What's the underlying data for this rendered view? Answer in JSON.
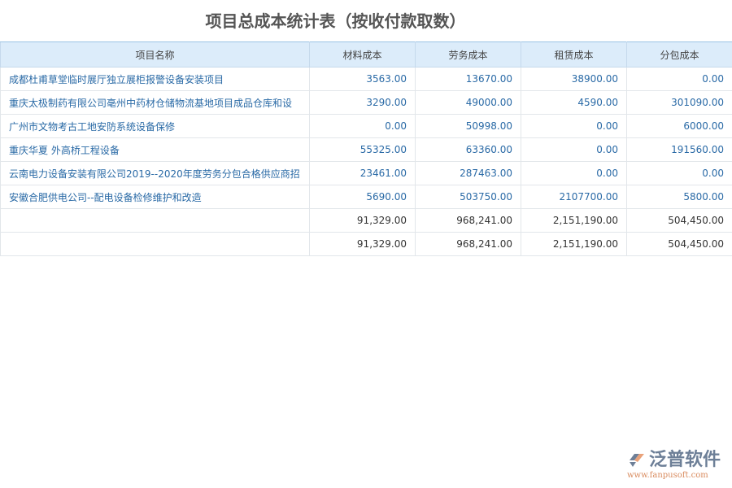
{
  "title": "项目总成本统计表（按收付款取数）",
  "columns": [
    "项目名称",
    "材料成本",
    "劳务成本",
    "租赁成本",
    "分包成本"
  ],
  "rows": [
    [
      "成都杜甫草堂临时展厅独立展柜报警设备安装项目",
      "3563.00",
      "13670.00",
      "38900.00",
      "0.00"
    ],
    [
      "重庆太极制药有限公司亳州中药材仓储物流基地项目成品仓库和设",
      "3290.00",
      "49000.00",
      "4590.00",
      "301090.00"
    ],
    [
      "广州市文物考古工地安防系统设备保修",
      "0.00",
      "50998.00",
      "0.00",
      "6000.00"
    ],
    [
      "重庆华夏 外高桥工程设备",
      "55325.00",
      "63360.00",
      "0.00",
      "191560.00"
    ],
    [
      "云南电力设备安装有限公司2019--2020年度劳务分包合格供应商招",
      "23461.00",
      "287463.00",
      "0.00",
      "0.00"
    ],
    [
      "安徽合肥供电公司--配电设备检修维护和改造",
      "5690.00",
      "503750.00",
      "2107700.00",
      "5800.00"
    ]
  ],
  "totals": [
    [
      "",
      "91,329.00",
      "968,241.00",
      "2,151,190.00",
      "504,450.00"
    ],
    [
      "",
      "91,329.00",
      "968,241.00",
      "2,151,190.00",
      "504,450.00"
    ]
  ],
  "logo": {
    "name": "泛普软件",
    "url": "www.fanpusoft.com"
  }
}
